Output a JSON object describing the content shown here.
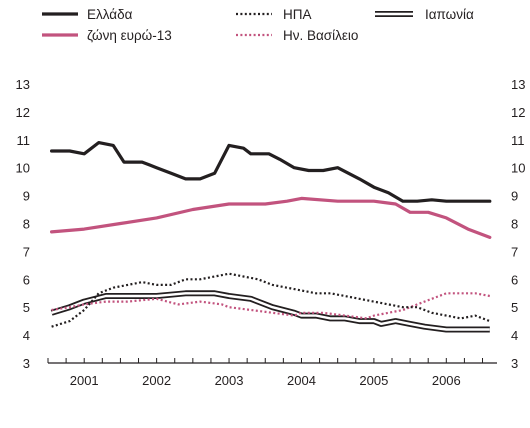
{
  "chart_data": {
    "type": "line",
    "title": "",
    "xlabel": "",
    "ylabel": "",
    "ylim": [
      3,
      13
    ],
    "y_ticks": [
      3,
      4,
      5,
      6,
      7,
      8,
      9,
      10,
      11,
      12,
      13
    ],
    "xlim": [
      2000.5,
      2006.7
    ],
    "x_tick_labels": [
      "2001",
      "2002",
      "2003",
      "2004",
      "2005",
      "2006"
    ],
    "x_tick_label_positions": [
      2001.0,
      2002.0,
      2003.0,
      2004.0,
      2005.0,
      2006.0
    ],
    "grid": false,
    "legend_position": "top",
    "series": [
      {
        "name": "Ελλάδα",
        "color": "#231f20",
        "style": "solid",
        "x": [
          2000.55,
          2000.8,
          2001.0,
          2001.2,
          2001.4,
          2001.55,
          2001.8,
          2001.9,
          2002.0,
          2002.2,
          2002.4,
          2002.6,
          2002.8,
          2003.0,
          2003.2,
          2003.3,
          2003.55,
          2003.7,
          2003.9,
          2004.1,
          2004.3,
          2004.5,
          2004.8,
          2005.0,
          2005.2,
          2005.4,
          2005.6,
          2005.8,
          2006.0,
          2006.2,
          2006.4,
          2006.6
        ],
        "y": [
          10.6,
          10.6,
          10.5,
          10.9,
          10.8,
          10.2,
          10.2,
          10.1,
          10.0,
          9.8,
          9.6,
          9.6,
          9.8,
          10.8,
          10.7,
          10.5,
          10.5,
          10.3,
          10.0,
          9.9,
          9.9,
          10.0,
          9.6,
          9.3,
          9.1,
          8.8,
          8.8,
          8.85,
          8.8,
          8.8,
          8.8,
          8.8
        ]
      },
      {
        "name": "ζώνη ευρώ-13",
        "color": "#c2537e",
        "style": "solid",
        "x": [
          2000.55,
          2001.0,
          2001.5,
          2002.0,
          2002.5,
          2003.0,
          2003.5,
          2003.8,
          2004.0,
          2004.5,
          2005.0,
          2005.3,
          2005.5,
          2005.75,
          2006.0,
          2006.3,
          2006.6
        ],
        "y": [
          7.7,
          7.8,
          8.0,
          8.2,
          8.5,
          8.7,
          8.7,
          8.8,
          8.9,
          8.8,
          8.8,
          8.7,
          8.4,
          8.4,
          8.2,
          7.8,
          7.5
        ]
      },
      {
        "name": "ΗΠΑ",
        "color": "#231f20",
        "style": "dotted",
        "x": [
          2000.55,
          2000.8,
          2001.0,
          2001.2,
          2001.4,
          2001.6,
          2001.8,
          2002.0,
          2002.2,
          2002.4,
          2002.6,
          2002.8,
          2003.0,
          2003.2,
          2003.4,
          2003.6,
          2003.8,
          2004.0,
          2004.2,
          2004.4,
          2004.6,
          2004.8,
          2005.0,
          2005.2,
          2005.4,
          2005.6,
          2005.8,
          2006.0,
          2006.2,
          2006.4,
          2006.6
        ],
        "y": [
          4.3,
          4.5,
          4.9,
          5.5,
          5.7,
          5.8,
          5.9,
          5.8,
          5.8,
          6.0,
          6.0,
          6.1,
          6.2,
          6.1,
          6.0,
          5.8,
          5.7,
          5.6,
          5.5,
          5.5,
          5.4,
          5.3,
          5.2,
          5.1,
          5.0,
          5.0,
          4.8,
          4.7,
          4.6,
          4.7,
          4.5
        ]
      },
      {
        "name": "Ην. Βασίλειο",
        "color": "#c2537e",
        "style": "dotted",
        "x": [
          2000.55,
          2000.8,
          2001.0,
          2001.3,
          2001.6,
          2002.0,
          2002.3,
          2002.6,
          2002.9,
          2003.0,
          2003.3,
          2003.6,
          2003.9,
          2004.0,
          2004.3,
          2004.6,
          2004.9,
          2005.0,
          2005.2,
          2005.4,
          2005.6,
          2005.8,
          2006.0,
          2006.2,
          2006.4,
          2006.6
        ],
        "y": [
          4.9,
          5.0,
          5.1,
          5.2,
          5.2,
          5.3,
          5.1,
          5.2,
          5.1,
          5.0,
          4.9,
          4.8,
          4.7,
          4.8,
          4.8,
          4.7,
          4.6,
          4.7,
          4.8,
          4.9,
          5.1,
          5.3,
          5.5,
          5.5,
          5.5,
          5.4
        ]
      },
      {
        "name": "Ιαπωνία",
        "color": "#231f20",
        "style": "double",
        "x": [
          2000.55,
          2000.8,
          2001.0,
          2001.3,
          2001.6,
          2002.0,
          2002.4,
          2002.8,
          2003.0,
          2003.3,
          2003.6,
          2003.9,
          2004.0,
          2004.2,
          2004.4,
          2004.6,
          2004.8,
          2005.0,
          2005.1,
          2005.3,
          2005.5,
          2005.7,
          2006.0,
          2006.3,
          2006.6
        ],
        "y": [
          4.8,
          5.0,
          5.2,
          5.4,
          5.4,
          5.4,
          5.5,
          5.5,
          5.4,
          5.3,
          5.0,
          4.8,
          4.7,
          4.7,
          4.6,
          4.6,
          4.5,
          4.5,
          4.4,
          4.5,
          4.4,
          4.3,
          4.2,
          4.2,
          4.2
        ]
      }
    ]
  }
}
